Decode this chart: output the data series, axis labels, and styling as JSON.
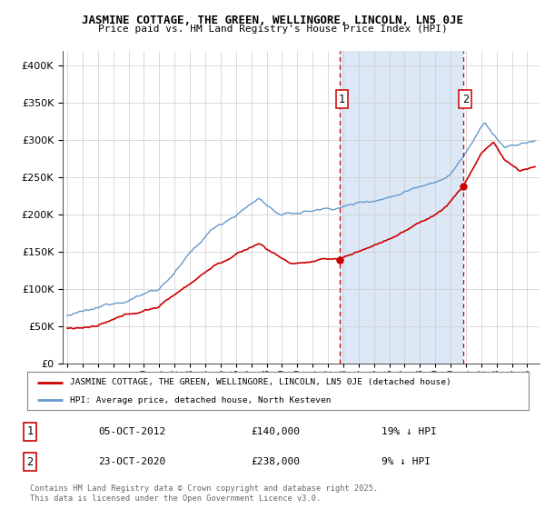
{
  "title": "JASMINE COTTAGE, THE GREEN, WELLINGORE, LINCOLN, LN5 0JE",
  "subtitle": "Price paid vs. HM Land Registry's House Price Index (HPI)",
  "red_label": "JASMINE COTTAGE, THE GREEN, WELLINGORE, LINCOLN, LN5 0JE (detached house)",
  "blue_label": "HPI: Average price, detached house, North Kesteven",
  "footer": "Contains HM Land Registry data © Crown copyright and database right 2025.\nThis data is licensed under the Open Government Licence v3.0.",
  "annotation1": {
    "label": "1",
    "date": "05-OCT-2012",
    "price": 140000,
    "pct": "19% ↓ HPI"
  },
  "annotation2": {
    "label": "2",
    "date": "23-OCT-2020",
    "price": 238000,
    "pct": "9% ↓ HPI"
  },
  "ylim": [
    0,
    420000
  ],
  "yticks": [
    0,
    50000,
    100000,
    150000,
    200000,
    250000,
    300000,
    350000,
    400000
  ],
  "background_color": "#eef3fb",
  "plot_bg": "#dce8f5",
  "shade_color": "#dce8f5",
  "red_color": "#cc0000",
  "blue_color": "#6699cc",
  "sale1_year": 2012.77,
  "sale2_year": 2020.81,
  "sale1_price": 140000,
  "sale2_price": 238000
}
